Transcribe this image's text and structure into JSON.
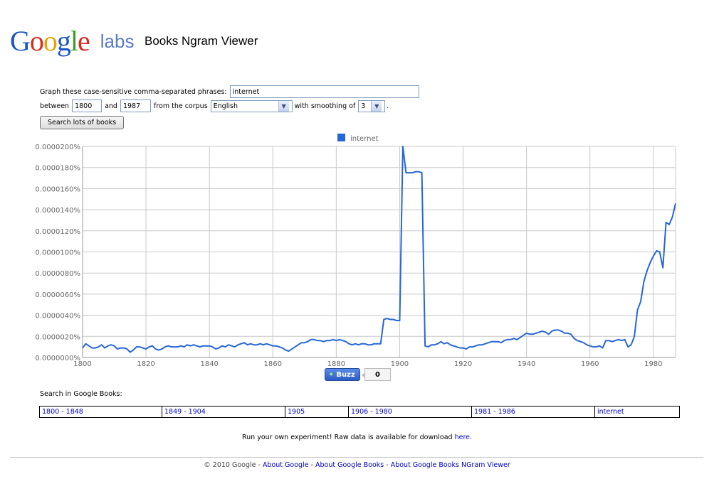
{
  "header": {
    "logo_letters": [
      {
        "ch": "G",
        "color": "#1a56c4"
      },
      {
        "ch": "o",
        "color": "#d62b1f"
      },
      {
        "ch": "o",
        "color": "#e8a400"
      },
      {
        "ch": "g",
        "color": "#1a56c4"
      },
      {
        "ch": "l",
        "color": "#3c9a2f"
      },
      {
        "ch": "e",
        "color": "#d62b1f"
      }
    ],
    "logo_suffix": "labs",
    "title": "Books Ngram Viewer"
  },
  "form": {
    "phrases_label": "Graph these case-sensitive comma-separated phrases:",
    "phrases_value": "internet",
    "between_label": "between",
    "start_year": "1800",
    "and_label": "and",
    "end_year": "1987",
    "corpus_label": "from the corpus",
    "corpus_value": "English",
    "smoothing_label": "with smoothing of",
    "smoothing_value": "3",
    "period": ".",
    "search_button": "Search lots of books"
  },
  "chart_data": {
    "type": "line",
    "legend": [
      "internet"
    ],
    "series_color": "#2566d8",
    "ylim": [
      0,
      2e-05
    ],
    "xlim": [
      1800,
      1987
    ],
    "y_ticks": [
      {
        "value": 0.0,
        "label": "0.0000000%"
      },
      {
        "value": 2e-06,
        "label": "0.0000020%"
      },
      {
        "value": 4e-06,
        "label": "0.0000040%"
      },
      {
        "value": 6e-06,
        "label": "0.0000060%"
      },
      {
        "value": 8e-06,
        "label": "0.0000080%"
      },
      {
        "value": 1e-05,
        "label": "0.0000100%"
      },
      {
        "value": 1.2e-05,
        "label": "0.0000120%"
      },
      {
        "value": 1.4e-05,
        "label": "0.0000140%"
      },
      {
        "value": 1.6e-05,
        "label": "0.0000160%"
      },
      {
        "value": 1.8e-05,
        "label": "0.0000180%"
      },
      {
        "value": 2e-05,
        "label": "0.0000200%"
      }
    ],
    "x_ticks": [
      1800,
      1820,
      1840,
      1860,
      1880,
      1900,
      1920,
      1940,
      1960,
      1980
    ],
    "grid": true,
    "points": [
      [
        1800,
        9e-07
      ],
      [
        1801,
        1.3e-06
      ],
      [
        1802,
        1.1e-06
      ],
      [
        1803,
        9e-07
      ],
      [
        1804,
        9e-07
      ],
      [
        1805,
        1e-06
      ],
      [
        1806,
        1.2e-06
      ],
      [
        1807,
        9e-07
      ],
      [
        1808,
        1.1e-06
      ],
      [
        1809,
        1.2e-06
      ],
      [
        1810,
        1.1e-06
      ],
      [
        1811,
        8e-07
      ],
      [
        1812,
        9e-07
      ],
      [
        1813,
        9e-07
      ],
      [
        1814,
        8e-07
      ],
      [
        1815,
        5e-07
      ],
      [
        1816,
        7e-07
      ],
      [
        1817,
        1e-06
      ],
      [
        1818,
        1e-06
      ],
      [
        1819,
        9e-07
      ],
      [
        1820,
        8e-07
      ],
      [
        1821,
        1e-06
      ],
      [
        1822,
        1.1e-06
      ],
      [
        1823,
        8e-07
      ],
      [
        1824,
        7e-07
      ],
      [
        1825,
        8e-07
      ],
      [
        1826,
        1e-06
      ],
      [
        1827,
        1.1e-06
      ],
      [
        1828,
        1e-06
      ],
      [
        1829,
        1e-06
      ],
      [
        1830,
        1e-06
      ],
      [
        1831,
        1.1e-06
      ],
      [
        1832,
        1e-06
      ],
      [
        1833,
        1.2e-06
      ],
      [
        1834,
        1.1e-06
      ],
      [
        1835,
        1.2e-06
      ],
      [
        1836,
        1.1e-06
      ],
      [
        1837,
        1e-06
      ],
      [
        1838,
        1.1e-06
      ],
      [
        1839,
        1.1e-06
      ],
      [
        1840,
        1.1e-06
      ],
      [
        1841,
        1e-06
      ],
      [
        1842,
        8e-07
      ],
      [
        1843,
        9e-07
      ],
      [
        1844,
        1.1e-06
      ],
      [
        1845,
        1e-06
      ],
      [
        1846,
        1.2e-06
      ],
      [
        1847,
        1.1e-06
      ],
      [
        1848,
        1e-06
      ],
      [
        1849,
        1.2e-06
      ],
      [
        1850,
        1.3e-06
      ],
      [
        1851,
        1.4e-06
      ],
      [
        1852,
        1.2e-06
      ],
      [
        1853,
        1.3e-06
      ],
      [
        1854,
        1.2e-06
      ],
      [
        1855,
        1.2e-06
      ],
      [
        1856,
        1.3e-06
      ],
      [
        1857,
        1.2e-06
      ],
      [
        1858,
        1.3e-06
      ],
      [
        1859,
        1.2e-06
      ],
      [
        1860,
        1.1e-06
      ],
      [
        1861,
        1.1e-06
      ],
      [
        1862,
        1e-06
      ],
      [
        1863,
        9e-07
      ],
      [
        1864,
        7e-07
      ],
      [
        1865,
        6e-07
      ],
      [
        1866,
        8e-07
      ],
      [
        1867,
        1e-06
      ],
      [
        1868,
        1.2e-06
      ],
      [
        1869,
        1.4e-06
      ],
      [
        1870,
        1.4e-06
      ],
      [
        1871,
        1.5e-06
      ],
      [
        1872,
        1.7e-06
      ],
      [
        1873,
        1.7e-06
      ],
      [
        1874,
        1.6e-06
      ],
      [
        1875,
        1.6e-06
      ],
      [
        1876,
        1.5e-06
      ],
      [
        1877,
        1.6e-06
      ],
      [
        1878,
        1.6e-06
      ],
      [
        1879,
        1.7e-06
      ],
      [
        1880,
        1.6e-06
      ],
      [
        1881,
        1.7e-06
      ],
      [
        1882,
        1.6e-06
      ],
      [
        1883,
        1.5e-06
      ],
      [
        1884,
        1.3e-06
      ],
      [
        1885,
        1.2e-06
      ],
      [
        1886,
        1.3e-06
      ],
      [
        1887,
        1.2e-06
      ],
      [
        1888,
        1.3e-06
      ],
      [
        1889,
        1.3e-06
      ],
      [
        1890,
        1.2e-06
      ],
      [
        1891,
        1.2e-06
      ],
      [
        1892,
        1.3e-06
      ],
      [
        1893,
        1.3e-06
      ],
      [
        1894,
        1.3e-06
      ],
      [
        1895,
        3.6e-06
      ],
      [
        1896,
        3.7e-06
      ],
      [
        1897,
        3.6e-06
      ],
      [
        1898,
        3.6e-06
      ],
      [
        1899,
        3.5e-06
      ],
      [
        1900,
        3.5e-06
      ],
      [
        1901,
        2e-05
      ],
      [
        1902,
        1.75e-05
      ],
      [
        1903,
        1.75e-05
      ],
      [
        1904,
        1.75e-05
      ],
      [
        1905,
        1.76e-05
      ],
      [
        1906,
        1.76e-05
      ],
      [
        1907,
        1.75e-05
      ],
      [
        1908,
        1.1e-06
      ],
      [
        1909,
        1e-06
      ],
      [
        1910,
        1.2e-06
      ],
      [
        1911,
        1.2e-06
      ],
      [
        1912,
        1.3e-06
      ],
      [
        1913,
        1.5e-06
      ],
      [
        1914,
        1.3e-06
      ],
      [
        1915,
        1.4e-06
      ],
      [
        1916,
        1.2e-06
      ],
      [
        1917,
        1.1e-06
      ],
      [
        1918,
        1e-06
      ],
      [
        1919,
        9e-07
      ],
      [
        1920,
        9e-07
      ],
      [
        1921,
        8e-07
      ],
      [
        1922,
        1e-06
      ],
      [
        1923,
        1e-06
      ],
      [
        1924,
        1.1e-06
      ],
      [
        1925,
        1.2e-06
      ],
      [
        1926,
        1.2e-06
      ],
      [
        1927,
        1.3e-06
      ],
      [
        1928,
        1.4e-06
      ],
      [
        1929,
        1.5e-06
      ],
      [
        1930,
        1.5e-06
      ],
      [
        1931,
        1.5e-06
      ],
      [
        1932,
        1.4e-06
      ],
      [
        1933,
        1.6e-06
      ],
      [
        1934,
        1.7e-06
      ],
      [
        1935,
        1.7e-06
      ],
      [
        1936,
        1.8e-06
      ],
      [
        1937,
        1.7e-06
      ],
      [
        1938,
        1.9e-06
      ],
      [
        1939,
        2.1e-06
      ],
      [
        1940,
        2.3e-06
      ],
      [
        1941,
        2.2e-06
      ],
      [
        1942,
        2.2e-06
      ],
      [
        1943,
        2.3e-06
      ],
      [
        1944,
        2.4e-06
      ],
      [
        1945,
        2.5e-06
      ],
      [
        1946,
        2.4e-06
      ],
      [
        1947,
        2.2e-06
      ],
      [
        1948,
        2.5e-06
      ],
      [
        1949,
        2.6e-06
      ],
      [
        1950,
        2.6e-06
      ],
      [
        1951,
        2.5e-06
      ],
      [
        1952,
        2.3e-06
      ],
      [
        1953,
        2.3e-06
      ],
      [
        1954,
        2.2e-06
      ],
      [
        1955,
        1.8e-06
      ],
      [
        1956,
        1.6e-06
      ],
      [
        1957,
        1.5e-06
      ],
      [
        1958,
        1.4e-06
      ],
      [
        1959,
        1.2e-06
      ],
      [
        1960,
        1.1e-06
      ],
      [
        1961,
        1e-06
      ],
      [
        1962,
        1e-06
      ],
      [
        1963,
        1.1e-06
      ],
      [
        1964,
        9e-07
      ],
      [
        1965,
        1.6e-06
      ],
      [
        1966,
        1.6e-06
      ],
      [
        1967,
        1.5e-06
      ],
      [
        1968,
        1.6e-06
      ],
      [
        1969,
        1.7e-06
      ],
      [
        1970,
        1.6e-06
      ],
      [
        1971,
        1.7e-06
      ],
      [
        1972,
        1e-06
      ],
      [
        1973,
        1.2e-06
      ],
      [
        1974,
        2e-06
      ],
      [
        1975,
        4.5e-06
      ],
      [
        1976,
        5.3e-06
      ],
      [
        1977,
        7.2e-06
      ],
      [
        1978,
        8.2e-06
      ],
      [
        1979,
        9e-06
      ],
      [
        1980,
        9.6e-06
      ],
      [
        1981,
        1.01e-05
      ],
      [
        1982,
        1e-05
      ],
      [
        1983,
        8.5e-06
      ],
      [
        1984,
        1.28e-05
      ],
      [
        1985,
        1.26e-05
      ],
      [
        1986,
        1.33e-05
      ],
      [
        1987,
        1.46e-05
      ]
    ]
  },
  "buzz": {
    "label": "Buzz",
    "icon": "buzz-icon",
    "count": "0"
  },
  "search_in": {
    "label": "Search in Google Books:",
    "ranges": [
      "1800 - 1848",
      "1849 - 1904",
      "1905",
      "1906 - 1980",
      "1981 - 1986",
      "internet"
    ]
  },
  "experiment": {
    "prefix": "Run your own experiment! Raw data is available for download ",
    "link": "here",
    "suffix": "."
  },
  "footer": {
    "copyright": "© 2010 Google",
    "sep": " - ",
    "links": [
      "About Google",
      "About Google Books",
      "About Google Books NGram Viewer"
    ]
  }
}
